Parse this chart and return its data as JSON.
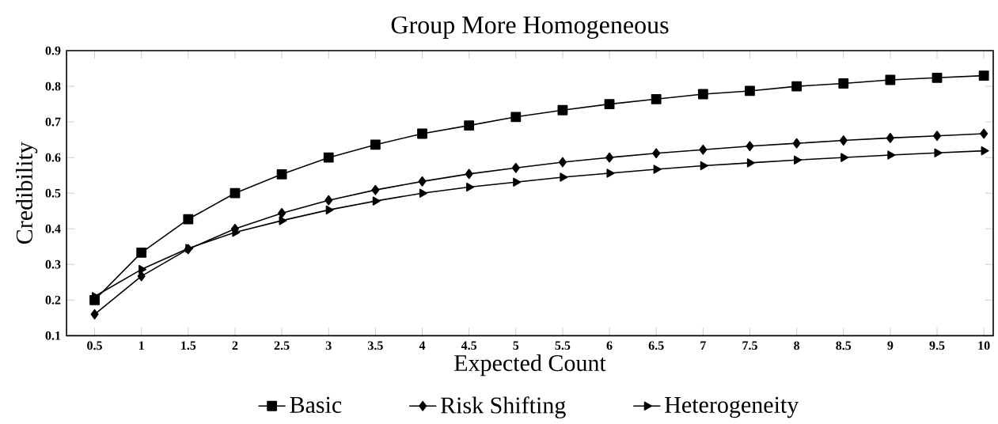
{
  "chart_data": {
    "type": "line",
    "title": "Group More Homogeneous",
    "xlabel": "Expected Count",
    "ylabel": "Credibility",
    "x": [
      0.5,
      1,
      1.5,
      2,
      2.5,
      3,
      3.5,
      4,
      4.5,
      5,
      5.5,
      6,
      6.5,
      7,
      7.5,
      8,
      8.5,
      9,
      9.5,
      10
    ],
    "series": [
      {
        "name": "Basic",
        "color": "#000000",
        "marker": "square",
        "values": [
          0.2,
          0.333,
          0.427,
          0.5,
          0.553,
          0.6,
          0.636,
          0.667,
          0.69,
          0.714,
          0.733,
          0.75,
          0.764,
          0.778,
          0.787,
          0.8,
          0.808,
          0.818,
          0.824,
          0.83
        ]
      },
      {
        "name": "Risk Shifting",
        "color": "#000000",
        "marker": "diamond",
        "values": [
          0.16,
          0.267,
          0.343,
          0.4,
          0.444,
          0.48,
          0.509,
          0.533,
          0.554,
          0.571,
          0.587,
          0.6,
          0.612,
          0.622,
          0.632,
          0.64,
          0.648,
          0.655,
          0.661,
          0.667
        ]
      },
      {
        "name": "Heterogeneity",
        "color": "#000000",
        "marker": "triangle",
        "values": [
          0.21,
          0.286,
          0.345,
          0.39,
          0.423,
          0.453,
          0.478,
          0.5,
          0.517,
          0.531,
          0.545,
          0.556,
          0.567,
          0.577,
          0.585,
          0.593,
          0.6,
          0.607,
          0.613,
          0.619
        ]
      }
    ],
    "xlim": [
      0.2,
      10.1
    ],
    "ylim": [
      0.1,
      0.9
    ],
    "xticks": [
      0.5,
      1,
      1.5,
      2,
      2.5,
      3,
      3.5,
      4,
      4.5,
      5,
      5.5,
      6,
      6.5,
      7,
      7.5,
      8,
      8.5,
      9,
      9.5,
      10
    ],
    "yticks": [
      0.1,
      0.2,
      0.3,
      0.4,
      0.5,
      0.6,
      0.7,
      0.8,
      0.9
    ],
    "grid": false,
    "legend": "bottom",
    "line_style": "solid"
  }
}
